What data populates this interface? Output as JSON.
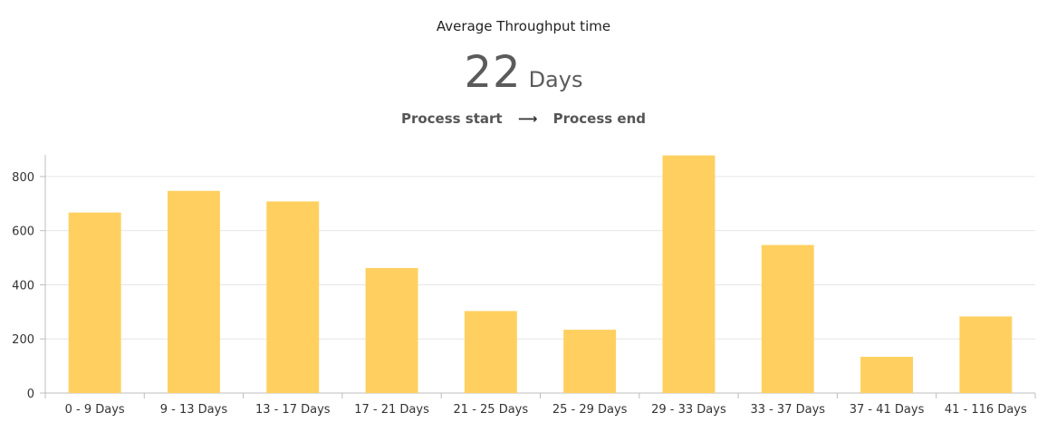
{
  "header": {
    "title": "Average Throughput time",
    "value": "22",
    "unit": "Days",
    "from": "Process start",
    "arrow": "⟶",
    "to": "Process end"
  },
  "chart_data": {
    "type": "bar",
    "categories": [
      "0 - 9 Days",
      "9 - 13 Days",
      "13 - 17 Days",
      "17 - 21 Days",
      "21 - 25 Days",
      "25 - 29 Days",
      "29 - 33 Days",
      "33 - 37 Days",
      "37 - 41 Days",
      "41 - 116 Days"
    ],
    "values": [
      667,
      747,
      708,
      462,
      303,
      234,
      878,
      547,
      134,
      283
    ],
    "yticks": [
      0,
      200,
      400,
      600,
      800
    ],
    "ylim": [
      0,
      880
    ],
    "grid": true,
    "bar_color": "#FFD060",
    "grid_color": "#e6e6e6",
    "axis_color": "#bdbdbd"
  }
}
